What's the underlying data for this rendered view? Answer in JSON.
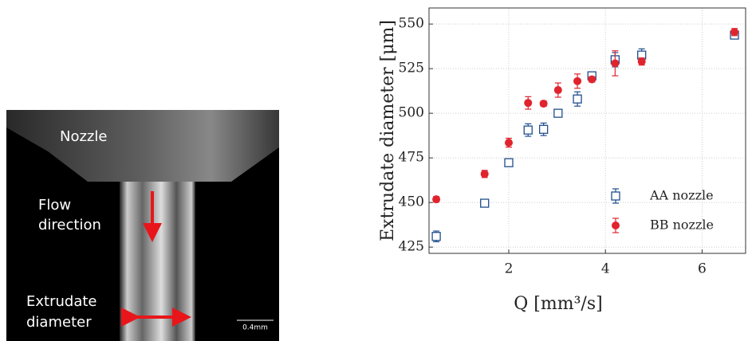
{
  "photo": {
    "nozzle_label": "Nozzle",
    "flow_label": [
      "Flow",
      "direction"
    ],
    "diameter_label": [
      "Extrudate",
      "diameter"
    ],
    "scale_bar": "0.4mm"
  },
  "chart_data": {
    "type": "scatter",
    "xlabel": "Q [mm³/s]",
    "ylabel": "Extrudate diameter [μm]",
    "xlim": [
      0.35,
      6.9
    ],
    "xticks": [
      2,
      4,
      6
    ],
    "ylim": [
      421.5,
      559
    ],
    "yticks": [
      425,
      450,
      475,
      500,
      525,
      550
    ],
    "grid": true,
    "legend": "lower right",
    "series": [
      {
        "name": "AA nozzle",
        "color": "#1f4e8c",
        "marker": "square",
        "x": [
          0.5,
          1.5,
          2.0,
          2.4,
          2.72,
          3.02,
          3.42,
          3.72,
          4.2,
          4.75,
          6.67
        ],
        "values": [
          431,
          449.6,
          472.3,
          490.6,
          491,
          500,
          508,
          521,
          530,
          532.6,
          543.8
        ],
        "errors": [
          3,
          1.5,
          1.5,
          3.5,
          3.5,
          1.5,
          4,
          2,
          4,
          3.5,
          1.5
        ]
      },
      {
        "name": "BB nozzle",
        "color": "#e0242e",
        "marker": "circle",
        "x": [
          0.5,
          1.5,
          2.0,
          2.4,
          2.72,
          3.02,
          3.42,
          3.72,
          4.2,
          4.75,
          6.67
        ],
        "values": [
          451.8,
          466,
          483.5,
          505.8,
          505.4,
          513,
          518,
          519,
          528,
          529,
          545.5
        ],
        "errors": [
          1.5,
          2,
          2.5,
          3.5,
          1.5,
          4,
          4,
          1.5,
          7,
          2,
          2
        ]
      }
    ]
  }
}
